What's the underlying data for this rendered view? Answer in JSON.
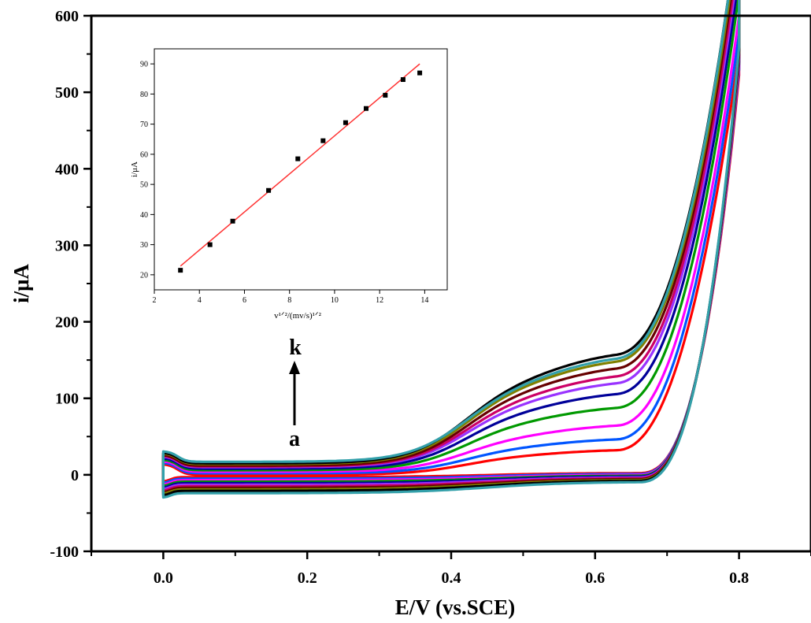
{
  "chart_data": [
    {
      "type": "line",
      "title": "",
      "xlabel": "E/V (vs.SCE)",
      "ylabel": "i/μA",
      "xlim": [
        -0.1,
        0.9
      ],
      "ylim": [
        -100,
        600
      ],
      "xticks": [
        0.0,
        0.2,
        0.4,
        0.6,
        0.8
      ],
      "xtick_labels": [
        "0.0",
        "0.2",
        "0.4",
        "0.6",
        "0.8"
      ],
      "yticks": [
        -100,
        0,
        100,
        200,
        300,
        400,
        500,
        600
      ],
      "ytick_labels": [
        "-100",
        "0",
        "100",
        "200",
        "300",
        "400",
        "500",
        "600"
      ],
      "grid": false,
      "annotations": {
        "first_curve_label": "a",
        "last_curve_label": "k",
        "arrow": "upward arrow from a to k"
      },
      "series": [
        {
          "color": "#ff0000",
          "peak_current": 25,
          "anodic_baseline": 0,
          "cathodic_baseline": -3,
          "end_current": 520
        },
        {
          "color": "#0055ff",
          "peak_current": 36,
          "anodic_baseline": 2,
          "cathodic_baseline": -5,
          "end_current": 528
        },
        {
          "color": "#ff00ff",
          "peak_current": 50,
          "anodic_baseline": 4,
          "cathodic_baseline": -7,
          "end_current": 532
        },
        {
          "color": "#009900",
          "peak_current": 68,
          "anodic_baseline": 6,
          "cathodic_baseline": -9,
          "end_current": 538
        },
        {
          "color": "#000099",
          "peak_current": 82,
          "anodic_baseline": 8,
          "cathodic_baseline": -11,
          "end_current": 542
        },
        {
          "color": "#9933ff",
          "peak_current": 93,
          "anodic_baseline": 10,
          "cathodic_baseline": -13,
          "end_current": 546
        },
        {
          "color": "#cc0066",
          "peak_current": 100,
          "anodic_baseline": 11,
          "cathodic_baseline": -15,
          "end_current": 550
        },
        {
          "color": "#660000",
          "peak_current": 108,
          "anodic_baseline": 12,
          "cathodic_baseline": -17,
          "end_current": 554
        },
        {
          "color": "#808000",
          "peak_current": 115,
          "anodic_baseline": 14,
          "cathodic_baseline": -19,
          "end_current": 558
        },
        {
          "color": "#000000",
          "peak_current": 122,
          "anodic_baseline": 15,
          "cathodic_baseline": -21,
          "end_current": 562
        },
        {
          "color": "#33a0aa",
          "peak_current": 118,
          "anodic_baseline": 17,
          "cathodic_baseline": -24,
          "end_current": 568
        }
      ]
    },
    {
      "type": "scatter",
      "title": "",
      "xlabel": "v¹ᐟ²/(mv/s)¹ᐟ²",
      "ylabel": "i/μA",
      "xlim": [
        2,
        15
      ],
      "ylim": [
        15,
        95
      ],
      "xticks": [
        2,
        4,
        6,
        8,
        10,
        12,
        14
      ],
      "xtick_labels": [
        "2",
        "4",
        "6",
        "8",
        "10",
        "12",
        "14"
      ],
      "yticks": [
        20,
        30,
        40,
        50,
        60,
        70,
        80,
        90
      ],
      "ytick_labels": [
        "20",
        "30",
        "40",
        "50",
        "60",
        "70",
        "80",
        "90"
      ],
      "grid": false,
      "points": {
        "x": [
          3.16,
          4.47,
          5.48,
          7.07,
          8.37,
          9.49,
          10.49,
          11.4,
          12.25,
          13.04,
          13.78
        ],
        "y": [
          21.5,
          30.0,
          37.8,
          48.0,
          58.5,
          64.5,
          70.5,
          75.2,
          79.6,
          84.8,
          87.0
        ]
      },
      "point_color": "#000000",
      "fit_line": {
        "x": [
          3.16,
          13.78
        ],
        "y": [
          22.9,
          90.0
        ],
        "color": "#ff3333"
      }
    }
  ]
}
